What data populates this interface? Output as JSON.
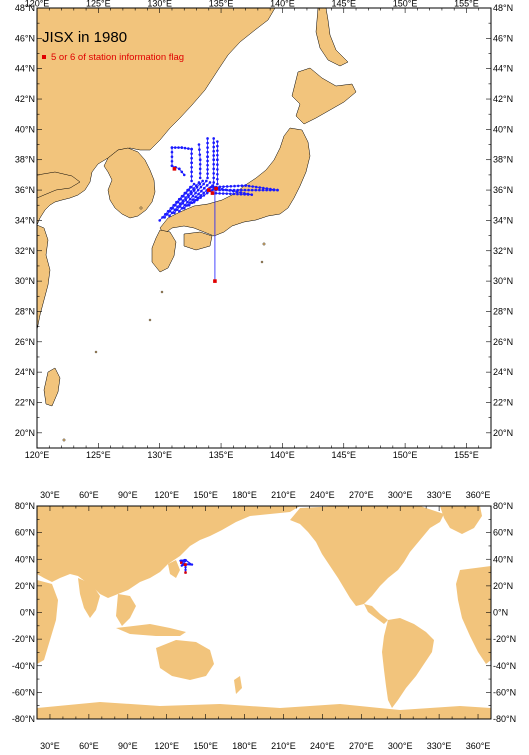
{
  "top_map": {
    "title": "JISX in 1980",
    "legend_label": "5 or 6 of station information flag",
    "x_ticks": [
      "120°E",
      "125°E",
      "130°E",
      "135°E",
      "140°E",
      "145°E",
      "150°E",
      "155°E"
    ],
    "x_tick_values": [
      120,
      125,
      130,
      135,
      140,
      145,
      150,
      155
    ],
    "y_ticks": [
      "20°N",
      "22°N",
      "24°N",
      "26°N",
      "28°N",
      "30°N",
      "32°N",
      "34°N",
      "36°N",
      "38°N",
      "40°N",
      "42°N",
      "44°N",
      "46°N",
      "48°N"
    ],
    "y_tick_values": [
      20,
      22,
      24,
      26,
      28,
      30,
      32,
      34,
      36,
      38,
      40,
      42,
      44,
      46,
      48
    ],
    "lon_range": [
      120,
      157
    ],
    "lat_range": [
      19,
      48
    ],
    "land_color": "#f2c47c",
    "track_color": "#1a1aff",
    "flag_color": "#e00000"
  },
  "bottom_map": {
    "x_ticks": [
      "30°E",
      "60°E",
      "90°E",
      "120°E",
      "150°E",
      "180°E",
      "210°E",
      "240°E",
      "270°E",
      "300°E",
      "330°E",
      "360°E"
    ],
    "x_tick_values": [
      30,
      60,
      90,
      120,
      150,
      180,
      210,
      240,
      270,
      300,
      330,
      360
    ],
    "y_ticks": [
      "80°N",
      "60°N",
      "40°N",
      "20°N",
      "0°N",
      "-20°N",
      "-40°N",
      "-60°N",
      "-80°N"
    ],
    "y_tick_values": [
      80,
      60,
      40,
      20,
      0,
      -20,
      -40,
      -60,
      -80
    ],
    "lon_range": [
      20,
      370
    ],
    "lat_range": [
      -80,
      80
    ],
    "land_color": "#f2c47c"
  },
  "chart_data": {
    "type": "scatter",
    "title": "JISX in 1980",
    "series": [
      {
        "name": "5 or 6 of station information flag",
        "points": [
          [
            134.5,
            30.0
          ],
          [
            134.0,
            36.0
          ],
          [
            134.3,
            35.8
          ],
          [
            134.6,
            36.1
          ],
          [
            131.2,
            37.4
          ]
        ]
      }
    ],
    "track_points": [
      [
        134.5,
        30.0
      ],
      [
        134.5,
        32.0
      ],
      [
        134.5,
        34.0
      ],
      [
        134.5,
        35.5
      ],
      [
        134.4,
        36.0
      ],
      [
        131.6,
        35.2
      ],
      [
        132.1,
        35.6
      ],
      [
        132.6,
        36.0
      ],
      [
        133.0,
        36.4
      ],
      [
        133.4,
        36.8
      ],
      [
        130.7,
        38.8
      ],
      [
        131.3,
        38.9
      ],
      [
        131.9,
        38.8
      ],
      [
        132.5,
        38.7
      ],
      [
        133.0,
        39.0
      ],
      [
        133.8,
        39.4
      ],
      [
        134.1,
        38.6
      ],
      [
        134.4,
        39.4
      ],
      [
        134.8,
        39.1
      ],
      [
        139.5,
        36.0
      ],
      [
        138.0,
        36.1
      ],
      [
        136.5,
        36.2
      ],
      [
        135.0,
        36.0
      ]
    ],
    "xlim": [
      120,
      157
    ],
    "ylim": [
      19,
      48
    ]
  }
}
